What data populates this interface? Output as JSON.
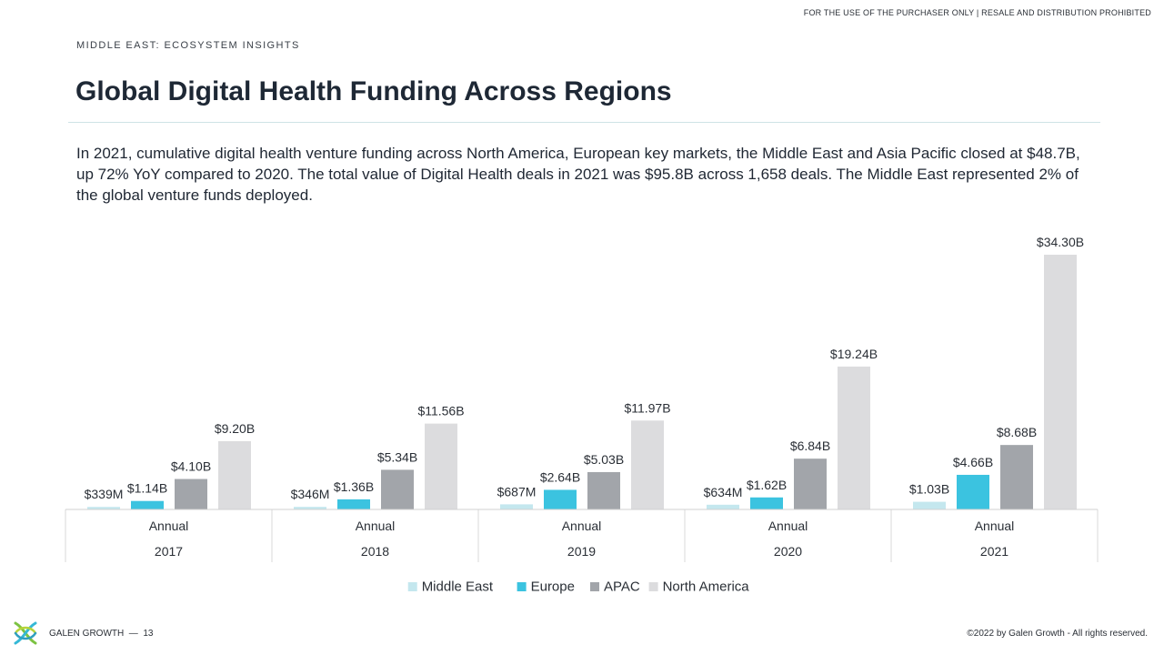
{
  "header": {
    "disclaimer": "FOR THE USE OF THE PURCHASER ONLY | RESALE AND DISTRIBUTION PROHIBITED",
    "kicker": "MIDDLE EAST: ECOSYSTEM INSIGHTS",
    "title": "Global Digital Health Funding Across Regions",
    "description": "In 2021, cumulative digital health venture funding across North America, European key markets, the Middle East and Asia Pacific closed at $48.7B, up 72% YoY compared to 2020. The total value of Digital Health deals in 2021 was $95.8B across 1,658 deals. The Middle East represented 2% of the global venture funds deployed."
  },
  "chart_data": {
    "type": "bar",
    "categories": [
      "2017",
      "2018",
      "2019",
      "2020",
      "2021"
    ],
    "period_label": "Annual",
    "ylim": [
      0,
      34.3
    ],
    "unit": "USD billions",
    "legend_position": "bottom",
    "grid": false,
    "series": [
      {
        "name": "Middle East",
        "color": "#c4e7ee",
        "values": [
          0.339,
          0.346,
          0.687,
          0.634,
          1.03
        ],
        "labels": [
          "$339M",
          "$346M",
          "$687M",
          "$634M",
          "$1.03B"
        ]
      },
      {
        "name": "Europe",
        "color": "#3bc3e0",
        "values": [
          1.14,
          1.36,
          2.64,
          1.62,
          4.66
        ],
        "labels": [
          "$1.14B",
          "$1.36B",
          "$2.64B",
          "$1.62B",
          "$4.66B"
        ]
      },
      {
        "name": "APAC",
        "color": "#a2a5aa",
        "values": [
          4.1,
          5.34,
          5.03,
          6.84,
          8.68
        ],
        "labels": [
          "$4.10B",
          "$5.34B",
          "$5.03B",
          "$6.84B",
          "$8.68B"
        ]
      },
      {
        "name": "North America",
        "color": "#dcdcde",
        "values": [
          9.2,
          11.56,
          11.97,
          19.24,
          34.3
        ],
        "labels": [
          "$9.20B",
          "$11.56B",
          "$11.97B",
          "$19.24B",
          "$34.30B"
        ]
      }
    ]
  },
  "footer": {
    "brand": "GALEN GROWTH",
    "page": "13",
    "copyright": "©2022 by Galen Growth  - All rights reserved.",
    "logo_icon": "galen-growth-logo-icon"
  }
}
